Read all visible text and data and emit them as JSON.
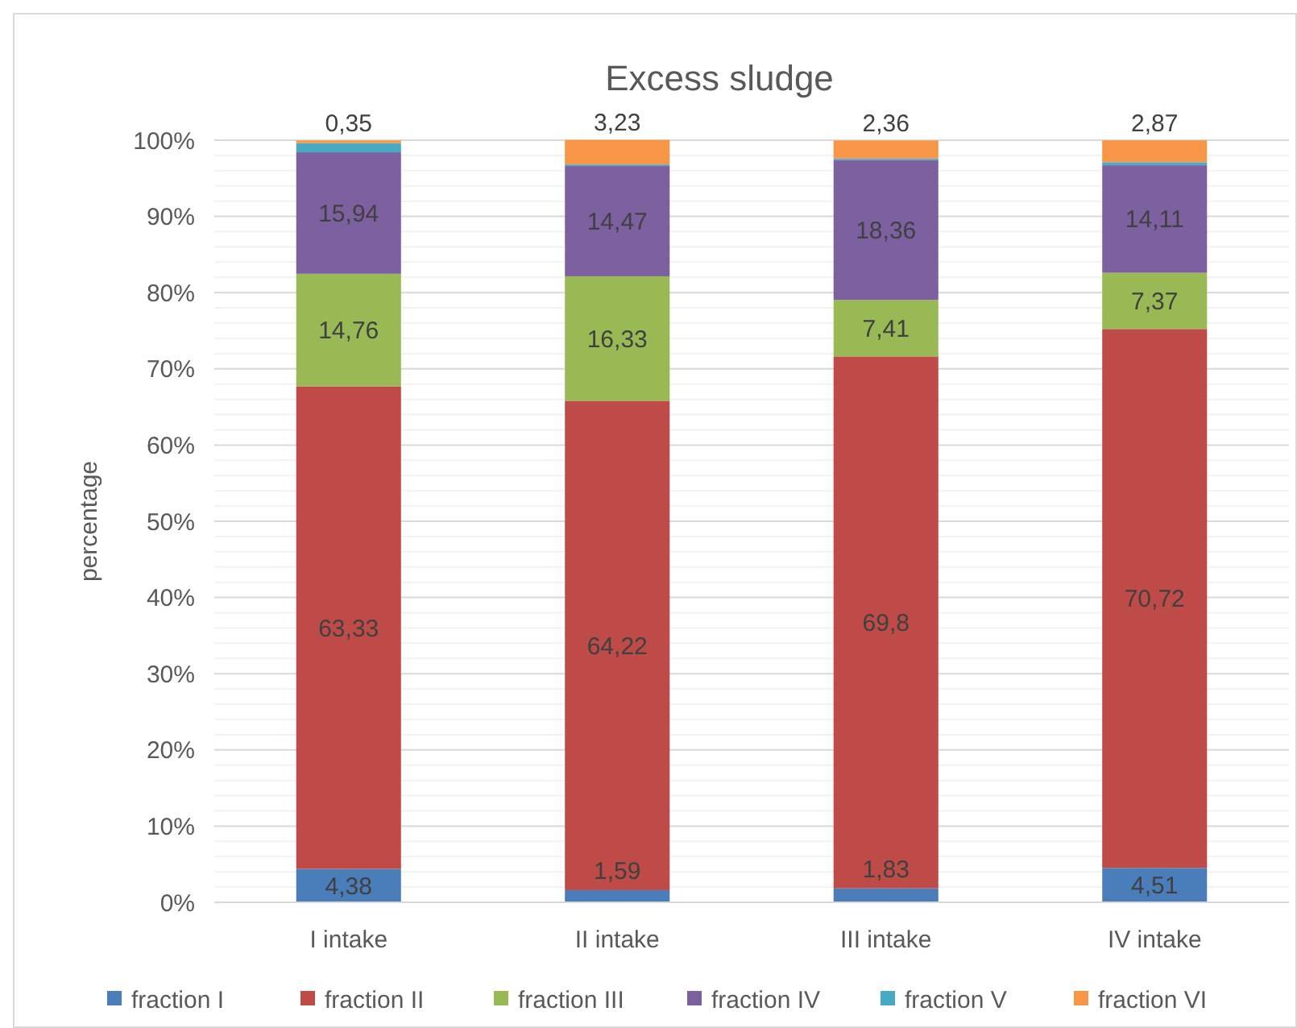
{
  "chart_data": {
    "type": "bar",
    "stacked": true,
    "title": "Excess sludge",
    "ylabel": "percentage",
    "categories": [
      "I intake",
      "II intake",
      "III intake",
      "IV intake"
    ],
    "ylim": [
      0,
      100
    ],
    "yticks": [
      {
        "value": 0,
        "label": "0%"
      },
      {
        "value": 2,
        "label": null
      },
      {
        "value": 4,
        "label": null
      },
      {
        "value": 6,
        "label": null
      },
      {
        "value": 8,
        "label": null
      },
      {
        "value": 10,
        "label": "10%"
      },
      {
        "value": 12,
        "label": null
      },
      {
        "value": 14,
        "label": null
      },
      {
        "value": 16,
        "label": null
      },
      {
        "value": 18,
        "label": null
      },
      {
        "value": 20,
        "label": "20%"
      },
      {
        "value": 22,
        "label": null
      },
      {
        "value": 24,
        "label": null
      },
      {
        "value": 26,
        "label": null
      },
      {
        "value": 28,
        "label": null
      },
      {
        "value": 30,
        "label": "30%"
      },
      {
        "value": 32,
        "label": null
      },
      {
        "value": 34,
        "label": null
      },
      {
        "value": 36,
        "label": null
      },
      {
        "value": 38,
        "label": null
      },
      {
        "value": 40,
        "label": "40%"
      },
      {
        "value": 42,
        "label": null
      },
      {
        "value": 44,
        "label": null
      },
      {
        "value": 46,
        "label": null
      },
      {
        "value": 48,
        "label": null
      },
      {
        "value": 50,
        "label": "50%"
      },
      {
        "value": 52,
        "label": null
      },
      {
        "value": 54,
        "label": null
      },
      {
        "value": 56,
        "label": null
      },
      {
        "value": 58,
        "label": null
      },
      {
        "value": 60,
        "label": "60%"
      },
      {
        "value": 62,
        "label": null
      },
      {
        "value": 64,
        "label": null
      },
      {
        "value": 66,
        "label": null
      },
      {
        "value": 68,
        "label": null
      },
      {
        "value": 70,
        "label": "70%"
      },
      {
        "value": 72,
        "label": null
      },
      {
        "value": 74,
        "label": null
      },
      {
        "value": 76,
        "label": null
      },
      {
        "value": 78,
        "label": null
      },
      {
        "value": 80,
        "label": "80%"
      },
      {
        "value": 82,
        "label": null
      },
      {
        "value": 84,
        "label": null
      },
      {
        "value": 86,
        "label": null
      },
      {
        "value": 88,
        "label": null
      },
      {
        "value": 90,
        "label": "90%"
      },
      {
        "value": 92,
        "label": null
      },
      {
        "value": 94,
        "label": null
      },
      {
        "value": 96,
        "label": null
      },
      {
        "value": 98,
        "label": null
      },
      {
        "value": 100,
        "label": "100%"
      }
    ],
    "grid": "y",
    "legend": "bottom",
    "series": [
      {
        "name": "fraction I",
        "color": "#4a7ebb",
        "values": [
          4.38,
          1.59,
          1.83,
          4.51
        ],
        "value_labels": [
          "4,38",
          "1,59",
          "1,83",
          "4,51"
        ]
      },
      {
        "name": "fraction II",
        "color": "#be4b48",
        "values": [
          63.33,
          64.22,
          69.8,
          70.72
        ],
        "value_labels": [
          "63,33",
          "64,22",
          "69,8",
          "70,72"
        ]
      },
      {
        "name": "fraction III",
        "color": "#98b954",
        "values": [
          14.76,
          16.33,
          7.41,
          7.37
        ],
        "value_labels": [
          "14,76",
          "16,33",
          "7,41",
          "7,37"
        ]
      },
      {
        "name": "fraction IV",
        "color": "#7d60a0",
        "values": [
          15.94,
          14.47,
          18.36,
          14.11
        ],
        "value_labels": [
          "15,94",
          "14,47",
          "18,36",
          "14,11"
        ]
      },
      {
        "name": "fraction V",
        "color": "#46aac5",
        "values": [
          1.2,
          0.2,
          0.2,
          0.4
        ],
        "value_labels": [
          null,
          null,
          null,
          null
        ]
      },
      {
        "name": "fraction VI",
        "color": "#f79646",
        "values": [
          0.35,
          3.23,
          2.36,
          2.87
        ],
        "value_labels": [
          "0,35",
          "3,23",
          "2,36",
          "2,87"
        ]
      }
    ]
  }
}
